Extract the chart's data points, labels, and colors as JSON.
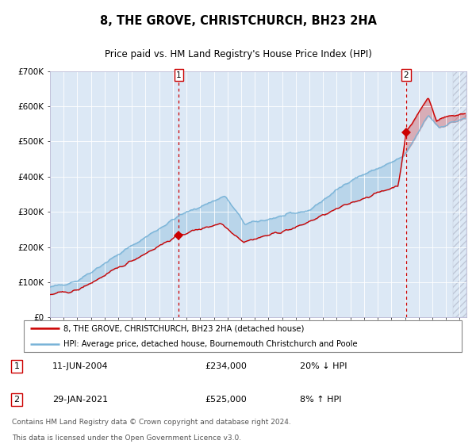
{
  "title": "8, THE GROVE, CHRISTCHURCH, BH23 2HA",
  "subtitle": "Price paid vs. HM Land Registry's House Price Index (HPI)",
  "legend_line1": "8, THE GROVE, CHRISTCHURCH, BH23 2HA (detached house)",
  "legend_line2": "HPI: Average price, detached house, Bournemouth Christchurch and Poole",
  "annotation1_date": "11-JUN-2004",
  "annotation1_price": "£234,000",
  "annotation1_hpi": "20% ↓ HPI",
  "annotation2_date": "29-JAN-2021",
  "annotation2_price": "£525,000",
  "annotation2_hpi": "8% ↑ HPI",
  "footnote1": "Contains HM Land Registry data © Crown copyright and database right 2024.",
  "footnote2": "This data is licensed under the Open Government Licence v3.0.",
  "hpi_color": "#7ab4d8",
  "price_color": "#cc0000",
  "plot_bg": "#dce8f5",
  "grid_color": "#ffffff",
  "hatch_color": "#c0c8d8",
  "ylim": [
    0,
    700000
  ],
  "yticks": [
    0,
    100000,
    200000,
    300000,
    400000,
    500000,
    600000,
    700000
  ],
  "ytick_labels": [
    "£0",
    "£100K",
    "£200K",
    "£300K",
    "£400K",
    "£500K",
    "£600K",
    "£700K"
  ],
  "xmin": 1995,
  "xmax": 2025.5,
  "sale1_year": 2004.44,
  "sale1_price": 234000,
  "sale2_year": 2021.08,
  "sale2_price": 525000,
  "hatch_start": 2024.5
}
